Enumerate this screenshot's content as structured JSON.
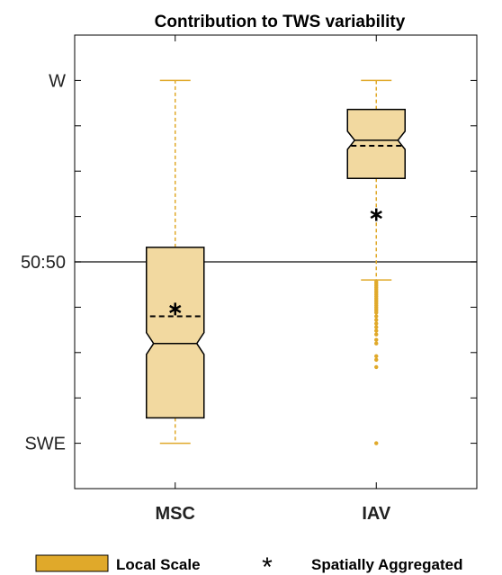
{
  "chart_data": {
    "type": "box",
    "title": "Contribution to TWS variability",
    "xlabel": "",
    "ylabel": "",
    "categories": [
      "MSC",
      "IAV"
    ],
    "y_tick_labels": [
      {
        "value": 1,
        "label": "W"
      },
      {
        "value": 0.5,
        "label": "50:50"
      },
      {
        "value": 0,
        "label": "SWE"
      }
    ],
    "y_minor_ticks": [
      0.125,
      0.25,
      0.375,
      0.625,
      0.75,
      0.875
    ],
    "ylim": [
      -0.125,
      1.125
    ],
    "reference_line": 0.5,
    "series": [
      {
        "name": "Local Scale",
        "boxes": [
          {
            "category": "MSC",
            "whisker_low": 0.0,
            "q1": 0.07,
            "median": 0.275,
            "mean": 0.35,
            "q3": 0.54,
            "whisker_high": 1.0,
            "notch_low": 0.245,
            "notch_high": 0.305,
            "outliers": []
          },
          {
            "category": "IAV",
            "whisker_low": 0.45,
            "q1": 0.73,
            "median": 0.835,
            "mean": 0.82,
            "q3": 0.92,
            "whisker_high": 1.0,
            "notch_low": 0.81,
            "notch_high": 0.86,
            "outliers": [
              0.445,
              0.44,
              0.435,
              0.43,
              0.425,
              0.42,
              0.415,
              0.41,
              0.405,
              0.4,
              0.395,
              0.39,
              0.385,
              0.38,
              0.375,
              0.37,
              0.365,
              0.36,
              0.35,
              0.34,
              0.33,
              0.32,
              0.31,
              0.3,
              0.285,
              0.275,
              0.24,
              0.23,
              0.21,
              0.0
            ]
          }
        ]
      },
      {
        "name": "Spatially Aggregated",
        "points": [
          {
            "category": "MSC",
            "value": 0.37
          },
          {
            "category": "IAV",
            "value": 0.63
          }
        ]
      }
    ],
    "colors": {
      "box_fill": "#f2d9a0",
      "box_edge": "#000000",
      "whisker": "#e0a92a",
      "legend_patch": "#e0a92a",
      "axis": "#000000",
      "grid_tick": "#000000"
    },
    "legend": {
      "placement": "bottom",
      "entries": [
        "Local Scale",
        "Spatially Aggregated"
      ]
    }
  }
}
